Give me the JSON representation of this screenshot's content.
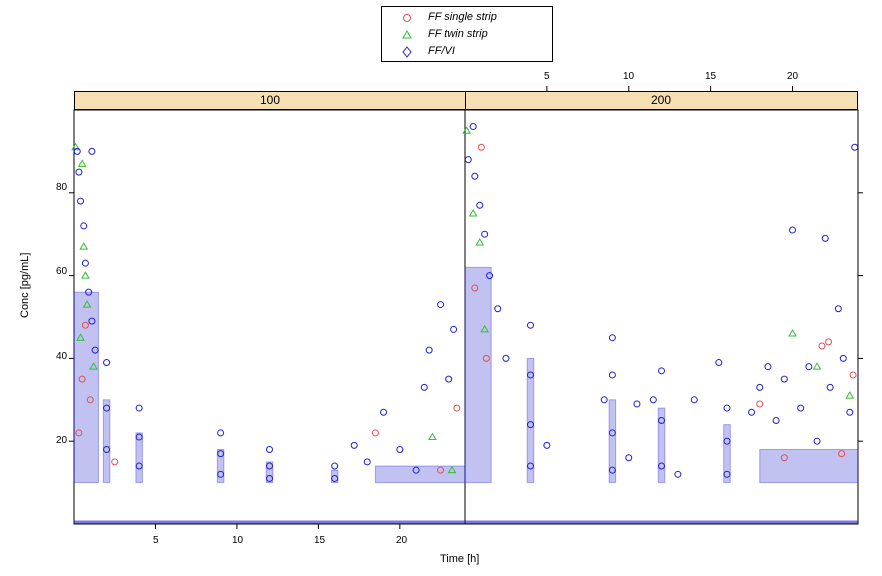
{
  "chart_data": {
    "type": "scatter",
    "layout": "two-panel trellis",
    "panels": [
      {
        "strip": "100",
        "x_ticks": [
          "5",
          "10",
          "15",
          "20"
        ],
        "x_tick_values": [
          5,
          10,
          15,
          20
        ],
        "x_axis_side": "bottom"
      },
      {
        "strip": "200",
        "x_ticks": [
          "5",
          "10",
          "15",
          "20"
        ],
        "x_tick_values": [
          5,
          10,
          15,
          20
        ],
        "x_axis_side": "top"
      }
    ],
    "xlabel": "Time [h]",
    "ylabel": "Conc [pg/mL]",
    "xlim": [
      0,
      24
    ],
    "ylim": [
      0,
      100
    ],
    "y_ticks": [
      "20",
      "40",
      "60",
      "80"
    ],
    "y_tick_values": [
      20,
      40,
      60,
      80
    ],
    "legend": {
      "position": "top-center",
      "entries": [
        {
          "label": "FF single strip",
          "marker": "circle",
          "color": "#e05050"
        },
        {
          "label": "FF twin strip",
          "marker": "triangle",
          "color": "#30c030"
        },
        {
          "label": "FF/VI",
          "marker": "diamond",
          "color": "#2020d0"
        }
      ]
    },
    "series": [
      {
        "name": "FF single strip",
        "color": "#e05050",
        "points": [
          {
            "panel": "100",
            "x": 0.3,
            "y": 22
          },
          {
            "panel": "100",
            "x": 0.5,
            "y": 35
          },
          {
            "panel": "100",
            "x": 0.7,
            "y": 48
          },
          {
            "panel": "100",
            "x": 1.0,
            "y": 30
          },
          {
            "panel": "100",
            "x": 2.5,
            "y": 15
          },
          {
            "panel": "100",
            "x": 18.5,
            "y": 22
          },
          {
            "panel": "100",
            "x": 22.5,
            "y": 13
          },
          {
            "panel": "100",
            "x": 23.5,
            "y": 28
          },
          {
            "panel": "200",
            "x": 0.6,
            "y": 57
          },
          {
            "panel": "200",
            "x": 1.0,
            "y": 91
          },
          {
            "panel": "200",
            "x": 1.3,
            "y": 40
          },
          {
            "panel": "200",
            "x": 18.0,
            "y": 29
          },
          {
            "panel": "200",
            "x": 19.5,
            "y": 16
          },
          {
            "panel": "200",
            "x": 21.8,
            "y": 43
          },
          {
            "panel": "200",
            "x": 22.2,
            "y": 44
          },
          {
            "panel": "200",
            "x": 23.0,
            "y": 17
          },
          {
            "panel": "200",
            "x": 23.7,
            "y": 36
          }
        ]
      },
      {
        "name": "FF twin strip",
        "color": "#30c030",
        "points": [
          {
            "panel": "100",
            "x": 0.1,
            "y": 91
          },
          {
            "panel": "100",
            "x": 0.5,
            "y": 87
          },
          {
            "panel": "100",
            "x": 0.6,
            "y": 67
          },
          {
            "panel": "100",
            "x": 0.7,
            "y": 60
          },
          {
            "panel": "100",
            "x": 0.8,
            "y": 53
          },
          {
            "panel": "100",
            "x": 0.4,
            "y": 45
          },
          {
            "panel": "100",
            "x": 1.2,
            "y": 38
          },
          {
            "panel": "100",
            "x": 22.0,
            "y": 21
          },
          {
            "panel": "100",
            "x": 23.2,
            "y": 13
          },
          {
            "panel": "200",
            "x": 0.1,
            "y": 95
          },
          {
            "panel": "200",
            "x": 0.5,
            "y": 75
          },
          {
            "panel": "200",
            "x": 0.9,
            "y": 68
          },
          {
            "panel": "200",
            "x": 1.2,
            "y": 47
          },
          {
            "panel": "200",
            "x": 20.0,
            "y": 46
          },
          {
            "panel": "200",
            "x": 21.5,
            "y": 38
          },
          {
            "panel": "200",
            "x": 23.5,
            "y": 31
          }
        ]
      },
      {
        "name": "FF/VI",
        "color": "#2020d0",
        "points": [
          {
            "panel": "100",
            "x": 0.2,
            "y": 90
          },
          {
            "panel": "100",
            "x": 0.3,
            "y": 85
          },
          {
            "panel": "100",
            "x": 0.4,
            "y": 78
          },
          {
            "panel": "100",
            "x": 0.6,
            "y": 72
          },
          {
            "panel": "100",
            "x": 0.7,
            "y": 63
          },
          {
            "panel": "100",
            "x": 0.9,
            "y": 56
          },
          {
            "panel": "100",
            "x": 1.1,
            "y": 49
          },
          {
            "panel": "100",
            "x": 1.3,
            "y": 42
          },
          {
            "panel": "100",
            "x": 1.1,
            "y": 90
          },
          {
            "panel": "100",
            "x": 2.0,
            "y": 39
          },
          {
            "panel": "100",
            "x": 2.0,
            "y": 28
          },
          {
            "panel": "100",
            "x": 2.0,
            "y": 18
          },
          {
            "panel": "100",
            "x": 4.0,
            "y": 28
          },
          {
            "panel": "100",
            "x": 4.0,
            "y": 21
          },
          {
            "panel": "100",
            "x": 4.0,
            "y": 14
          },
          {
            "panel": "100",
            "x": 9.0,
            "y": 22
          },
          {
            "panel": "100",
            "x": 9.0,
            "y": 17
          },
          {
            "panel": "100",
            "x": 9.0,
            "y": 12
          },
          {
            "panel": "100",
            "x": 12.0,
            "y": 18
          },
          {
            "panel": "100",
            "x": 12.0,
            "y": 14
          },
          {
            "panel": "100",
            "x": 12.0,
            "y": 11
          },
          {
            "panel": "100",
            "x": 16.0,
            "y": 14
          },
          {
            "panel": "100",
            "x": 16.0,
            "y": 11
          },
          {
            "panel": "100",
            "x": 17.2,
            "y": 19
          },
          {
            "panel": "100",
            "x": 18.0,
            "y": 15
          },
          {
            "panel": "100",
            "x": 19.0,
            "y": 27
          },
          {
            "panel": "100",
            "x": 20.0,
            "y": 18
          },
          {
            "panel": "100",
            "x": 21.0,
            "y": 13
          },
          {
            "panel": "100",
            "x": 21.5,
            "y": 33
          },
          {
            "panel": "100",
            "x": 21.8,
            "y": 42
          },
          {
            "panel": "100",
            "x": 22.5,
            "y": 53
          },
          {
            "panel": "100",
            "x": 23.0,
            "y": 35
          },
          {
            "panel": "100",
            "x": 23.3,
            "y": 47
          },
          {
            "panel": "200",
            "x": 0.2,
            "y": 88
          },
          {
            "panel": "200",
            "x": 0.5,
            "y": 96
          },
          {
            "panel": "200",
            "x": 0.6,
            "y": 84
          },
          {
            "panel": "200",
            "x": 0.9,
            "y": 77
          },
          {
            "panel": "200",
            "x": 1.2,
            "y": 70
          },
          {
            "panel": "200",
            "x": 1.5,
            "y": 60
          },
          {
            "panel": "200",
            "x": 2.0,
            "y": 52
          },
          {
            "panel": "200",
            "x": 2.5,
            "y": 40
          },
          {
            "panel": "200",
            "x": 4.0,
            "y": 48
          },
          {
            "panel": "200",
            "x": 4.0,
            "y": 36
          },
          {
            "panel": "200",
            "x": 4.0,
            "y": 24
          },
          {
            "panel": "200",
            "x": 4.0,
            "y": 14
          },
          {
            "panel": "200",
            "x": 5.0,
            "y": 19
          },
          {
            "panel": "200",
            "x": 8.5,
            "y": 30
          },
          {
            "panel": "200",
            "x": 9.0,
            "y": 45
          },
          {
            "panel": "200",
            "x": 9.0,
            "y": 36
          },
          {
            "panel": "200",
            "x": 9.0,
            "y": 22
          },
          {
            "panel": "200",
            "x": 9.0,
            "y": 13
          },
          {
            "panel": "200",
            "x": 10.0,
            "y": 16
          },
          {
            "panel": "200",
            "x": 10.5,
            "y": 29
          },
          {
            "panel": "200",
            "x": 11.5,
            "y": 30
          },
          {
            "panel": "200",
            "x": 12.0,
            "y": 37
          },
          {
            "panel": "200",
            "x": 12.0,
            "y": 25
          },
          {
            "panel": "200",
            "x": 12.0,
            "y": 14
          },
          {
            "panel": "200",
            "x": 13.0,
            "y": 12
          },
          {
            "panel": "200",
            "x": 14.0,
            "y": 30
          },
          {
            "panel": "200",
            "x": 15.5,
            "y": 39
          },
          {
            "panel": "200",
            "x": 16.0,
            "y": 28
          },
          {
            "panel": "200",
            "x": 16.0,
            "y": 20
          },
          {
            "panel": "200",
            "x": 16.0,
            "y": 12
          },
          {
            "panel": "200",
            "x": 17.5,
            "y": 27
          },
          {
            "panel": "200",
            "x": 18.0,
            "y": 33
          },
          {
            "panel": "200",
            "x": 18.5,
            "y": 38
          },
          {
            "panel": "200",
            "x": 19.0,
            "y": 25
          },
          {
            "panel": "200",
            "x": 19.5,
            "y": 35
          },
          {
            "panel": "200",
            "x": 20.0,
            "y": 71
          },
          {
            "panel": "200",
            "x": 20.5,
            "y": 28
          },
          {
            "panel": "200",
            "x": 21.0,
            "y": 38
          },
          {
            "panel": "200",
            "x": 21.5,
            "y": 20
          },
          {
            "panel": "200",
            "x": 22.0,
            "y": 69
          },
          {
            "panel": "200",
            "x": 22.3,
            "y": 33
          },
          {
            "panel": "200",
            "x": 22.8,
            "y": 52
          },
          {
            "panel": "200",
            "x": 23.1,
            "y": 40
          },
          {
            "panel": "200",
            "x": 23.5,
            "y": 27
          },
          {
            "panel": "200",
            "x": 23.8,
            "y": 91
          }
        ]
      }
    ]
  }
}
